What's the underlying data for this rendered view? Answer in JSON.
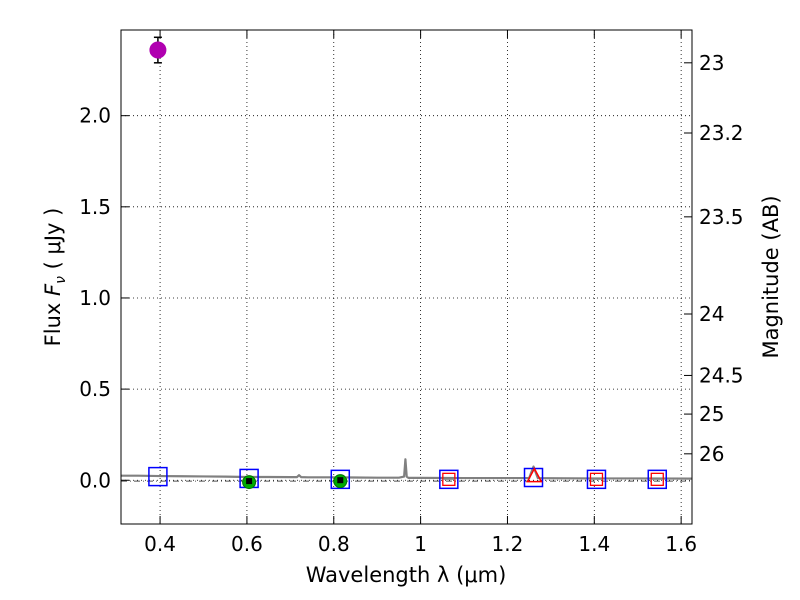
{
  "chart_data": {
    "type": "scatter",
    "title": "",
    "xlabel": "Wavelength  λ (μm)",
    "ylabel": "Flux  F_ν  ( μJy )",
    "ylabel_parts": {
      "prefix": "Flux  ",
      "symbol": "F",
      "subscript": "ν",
      "suffix": "  ( μJy )"
    },
    "y2label": "Magnitude (AB)",
    "xlim": [
      0.31,
      1.625
    ],
    "ylim": [
      -0.24,
      2.47
    ],
    "grid": true,
    "x_ticks": [
      0.4,
      0.6,
      0.8,
      1.0,
      1.2,
      1.4,
      1.6
    ],
    "x_tick_labels": [
      "0.4",
      "0.6",
      "0.8",
      "1",
      "1.2",
      "1.4",
      "1.6"
    ],
    "y_ticks": [
      0.0,
      0.5,
      1.0,
      1.5,
      2.0
    ],
    "y_tick_labels": [
      "0.0",
      "0.5",
      "1.0",
      "1.5",
      "2.0"
    ],
    "mag_ticks": [
      {
        "label": "23",
        "flux": 2.29
      },
      {
        "label": "23.2",
        "flux": 1.905
      },
      {
        "label": "23.5",
        "flux": 1.445
      },
      {
        "label": "24",
        "flux": 0.912
      },
      {
        "label": "24.5",
        "flux": 0.575
      },
      {
        "label": "25",
        "flux": 0.363
      },
      {
        "label": "26",
        "flux": 0.145
      }
    ],
    "colors": {
      "detection": "#b000b0",
      "model_square": "#0000ff",
      "red_marker": "#ff0000",
      "green_marker": "#00aa00",
      "black_marker": "#000000",
      "spectrum": "#808080",
      "grid": "#000000"
    },
    "series": [
      {
        "name": "spectrum",
        "kind": "line",
        "x": [
          0.31,
          0.35,
          0.4,
          0.45,
          0.5,
          0.55,
          0.6,
          0.65,
          0.7,
          0.715,
          0.72,
          0.725,
          0.74,
          0.8,
          0.85,
          0.9,
          0.95,
          0.962,
          0.965,
          0.968,
          0.972,
          1.0,
          1.1,
          1.2,
          1.25,
          1.26,
          1.27,
          1.3,
          1.4,
          1.5,
          1.625
        ],
        "y": [
          0.025,
          0.025,
          0.023,
          0.022,
          0.021,
          0.02,
          0.018,
          0.018,
          0.017,
          0.017,
          0.028,
          0.017,
          0.016,
          0.016,
          0.015,
          0.014,
          0.014,
          0.02,
          0.115,
          0.02,
          0.013,
          0.013,
          0.012,
          0.012,
          0.012,
          0.075,
          0.012,
          0.011,
          0.01,
          0.01,
          0.009
        ]
      },
      {
        "name": "zero-level",
        "kind": "dashdot",
        "x": [
          0.31,
          1.625
        ],
        "y": [
          -0.005,
          -0.005
        ]
      },
      {
        "name": "detection",
        "kind": "circle-errorbar",
        "points": [
          {
            "x": 0.395,
            "y": 2.36,
            "yerr": 0.07
          }
        ]
      },
      {
        "name": "model-photometry",
        "kind": "open-square",
        "points": [
          {
            "x": 0.395,
            "y": 0.02
          },
          {
            "x": 0.605,
            "y": 0.01
          },
          {
            "x": 0.815,
            "y": 0.005
          },
          {
            "x": 1.065,
            "y": 0.005
          },
          {
            "x": 1.26,
            "y": 0.015
          },
          {
            "x": 1.405,
            "y": 0.005
          },
          {
            "x": 1.545,
            "y": 0.005
          }
        ]
      },
      {
        "name": "observed-upper",
        "kind": "small-square",
        "points": [
          {
            "x": 1.065,
            "y": 0.005
          },
          {
            "x": 1.405,
            "y": 0.005
          },
          {
            "x": 1.545,
            "y": 0.005
          }
        ]
      },
      {
        "name": "observed-triangle",
        "kind": "triangle",
        "points": [
          {
            "x": 1.262,
            "y": 0.02
          }
        ]
      },
      {
        "name": "green-points",
        "kind": "filled-circle",
        "points": [
          {
            "x": 0.605,
            "y": -0.01
          },
          {
            "x": 0.815,
            "y": -0.005
          }
        ]
      },
      {
        "name": "black-points",
        "kind": "black-marker",
        "points": [
          {
            "x": 0.605,
            "y": -0.01
          },
          {
            "x": 0.815,
            "y": -0.005
          }
        ]
      }
    ]
  }
}
